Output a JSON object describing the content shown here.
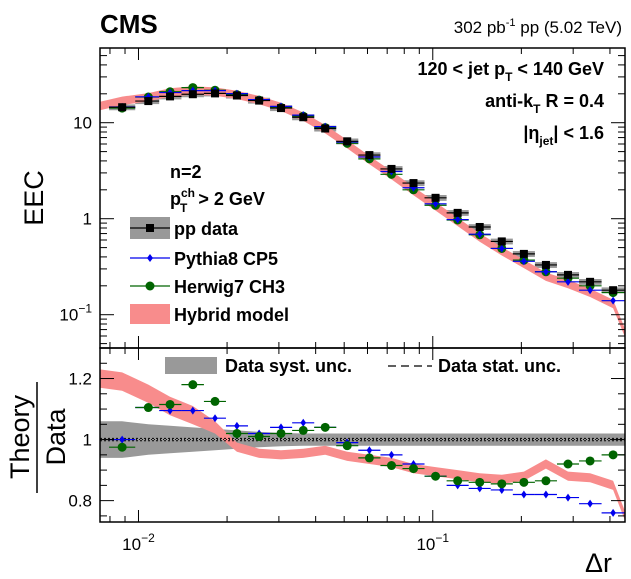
{
  "header": {
    "experiment": "CMS",
    "lumi_value": "302 pb",
    "lumi_exponent": "-1",
    "lumi_rest": " pp (5.02 TeV)"
  },
  "info": {
    "pt_range_left": "120 < jet p",
    "pt_sub": "T",
    "pt_range_right": " < 140 GeV",
    "algo_left": "anti-k",
    "algo_sub": "T",
    "algo_right": " R = 0.4",
    "eta_left": "|η",
    "eta_sub": "jet",
    "eta_right": "| < 1.6",
    "n_label": "n=2",
    "ptch_left": "p",
    "ptch_sup": "ch",
    "ptch_sub": "T",
    "ptch_right": " > 2 GeV"
  },
  "chart_data": [
    {
      "type": "scatter",
      "panel": "main",
      "ylabel": "EEC",
      "xlog": true,
      "ylog": true,
      "xlim": [
        0.0074,
        0.45
      ],
      "ylim": [
        0.045,
        60
      ],
      "x_ticks": [
        0.01,
        0.1
      ],
      "x_tick_labels": [
        "",
        ""
      ],
      "y_ticks": [
        0.1,
        1,
        10
      ],
      "y_tick_labels": [
        "10⁻¹",
        "1",
        "10"
      ],
      "x": [
        0.0088,
        0.0108,
        0.0128,
        0.0153,
        0.0182,
        0.0216,
        0.0257,
        0.0305,
        0.0363,
        0.0431,
        0.0512,
        0.0609,
        0.0724,
        0.086,
        0.1022,
        0.1215,
        0.1444,
        0.1716,
        0.204,
        0.2424,
        0.2881,
        0.3424,
        0.41
      ],
      "series": [
        {
          "name": "pp data",
          "color": "#000000",
          "marker": "square",
          "values": [
            14.5,
            16.8,
            18.8,
            19.8,
            20.2,
            19.2,
            17.0,
            14.2,
            11.4,
            8.7,
            6.4,
            4.6,
            3.3,
            2.35,
            1.65,
            1.15,
            0.82,
            0.58,
            0.43,
            0.33,
            0.26,
            0.22,
            0.18
          ]
        },
        {
          "name": "Pythia8 CP5",
          "color": "#0000ee",
          "marker": "diamond",
          "values": [
            14.6,
            18.6,
            20.6,
            21.6,
            21.6,
            20.1,
            17.4,
            14.8,
            12.0,
            9.1,
            6.3,
            4.4,
            3.1,
            2.1,
            1.43,
            0.98,
            0.69,
            0.49,
            0.36,
            0.28,
            0.22,
            0.18,
            0.14
          ]
        },
        {
          "name": "Herwig7 CH3",
          "color": "#006400",
          "marker": "circle",
          "values": [
            14.2,
            18.5,
            21.0,
            23.2,
            21.8,
            19.6,
            17.2,
            14.4,
            11.7,
            8.9,
            6.1,
            4.2,
            2.9,
            2.0,
            1.38,
            0.97,
            0.68,
            0.49,
            0.37,
            0.28,
            0.24,
            0.2,
            0.17
          ]
        }
      ],
      "hybrid_model": {
        "name": "Hybrid model",
        "color": "#f88c8c",
        "x": [
          0.0074,
          0.0088,
          0.0108,
          0.0128,
          0.0153,
          0.0182,
          0.0216,
          0.0257,
          0.0305,
          0.0363,
          0.0431,
          0.0512,
          0.0609,
          0.0724,
          0.086,
          0.1022,
          0.1215,
          0.1444,
          0.1716,
          0.204,
          0.2424,
          0.2881,
          0.3424,
          0.41,
          0.45
        ],
        "values": [
          15.0,
          17.0,
          18.5,
          20.8,
          21.8,
          21.2,
          19.6,
          17.3,
          14.7,
          11.6,
          8.6,
          6.0,
          4.1,
          2.85,
          1.95,
          1.35,
          0.93,
          0.64,
          0.46,
          0.34,
          0.25,
          0.21,
          0.17,
          0.13,
          0.065
        ]
      },
      "data_syst_rel": 0.07
    },
    {
      "type": "scatter",
      "panel": "ratio",
      "xlabel": "Δr",
      "ylabel_top": "Theory",
      "ylabel_bottom": "Data",
      "xlog": true,
      "xlim": [
        0.0074,
        0.45
      ],
      "ylim": [
        0.73,
        1.3
      ],
      "x_ticks": [
        0.01,
        0.1
      ],
      "x_tick_labels": [
        "10⁻²",
        "10⁻¹"
      ],
      "y_ticks": [
        0.8,
        1.0,
        1.2
      ],
      "y_tick_labels": [
        "0.8",
        "1",
        "1.2"
      ],
      "x": [
        0.0088,
        0.0108,
        0.0128,
        0.0153,
        0.0182,
        0.0216,
        0.0257,
        0.0305,
        0.0363,
        0.0431,
        0.0512,
        0.0609,
        0.0724,
        0.086,
        0.1022,
        0.1215,
        0.1444,
        0.1716,
        0.204,
        0.2424,
        0.2881,
        0.3424,
        0.41
      ],
      "series": [
        {
          "name": "Pythia8 CP5",
          "color": "#0000ee",
          "values": [
            1.0,
            1.105,
            1.095,
            1.095,
            1.07,
            1.045,
            1.02,
            1.04,
            1.055,
            1.04,
            0.99,
            0.965,
            0.95,
            0.92,
            0.88,
            0.85,
            0.84,
            0.835,
            0.82,
            0.82,
            0.81,
            0.79,
            0.76
          ]
        },
        {
          "name": "Herwig7 CH3",
          "color": "#006400",
          "values": [
            0.975,
            1.105,
            1.115,
            1.18,
            1.125,
            1.02,
            1.01,
            1.02,
            1.03,
            1.04,
            0.98,
            0.94,
            0.915,
            0.905,
            0.88,
            0.865,
            0.86,
            0.855,
            0.86,
            0.865,
            0.92,
            0.93,
            0.95
          ]
        }
      ],
      "hybrid_model": {
        "name": "Hybrid model",
        "color": "#f88c8c",
        "x": [
          0.0074,
          0.0088,
          0.0108,
          0.0128,
          0.0153,
          0.0182,
          0.0216,
          0.0257,
          0.0305,
          0.0363,
          0.0431,
          0.0512,
          0.0609,
          0.0724,
          0.086,
          0.1022,
          0.1215,
          0.1444,
          0.1716,
          0.204,
          0.2424,
          0.2881,
          0.3424,
          0.41,
          0.45
        ],
        "center": [
          1.2,
          1.19,
          1.15,
          1.11,
          1.08,
          1.04,
          0.975,
          0.955,
          0.95,
          0.955,
          0.965,
          0.945,
          0.935,
          0.925,
          0.905,
          0.895,
          0.885,
          0.875,
          0.87,
          0.88,
          0.92,
          0.88,
          0.875,
          0.85,
          0.75
        ],
        "half_width": [
          0.03,
          0.03,
          0.03,
          0.03,
          0.03,
          0.02,
          0.015,
          0.015,
          0.015,
          0.015,
          0.015,
          0.015,
          0.015,
          0.015,
          0.015,
          0.015,
          0.015,
          0.015,
          0.015,
          0.015,
          0.015,
          0.015,
          0.015,
          0.015,
          0.015
        ]
      },
      "data_syst": {
        "x": [
          0.0074,
          0.0088,
          0.0108,
          0.0128,
          0.0153,
          0.0182,
          0.0216,
          0.0257,
          0.0305,
          0.0363,
          0.0431,
          0.0512,
          0.0609,
          0.0724,
          0.086,
          0.1022,
          0.1215,
          0.1444,
          0.1716,
          0.204,
          0.2424,
          0.2881,
          0.3424,
          0.41,
          0.45
        ],
        "half_width": [
          0.06,
          0.06,
          0.05,
          0.045,
          0.04,
          0.035,
          0.03,
          0.025,
          0.022,
          0.02,
          0.02,
          0.02,
          0.02,
          0.02,
          0.02,
          0.02,
          0.02,
          0.02,
          0.02,
          0.02,
          0.02,
          0.02,
          0.02,
          0.02,
          0.02
        ]
      },
      "stat_unc_rel": 0.004
    }
  ],
  "legend_main": [
    {
      "label": "pp data"
    },
    {
      "label": "Pythia8 CP5"
    },
    {
      "label": "Herwig7 CH3"
    },
    {
      "label": "Hybrid model"
    }
  ],
  "legend_ratio": [
    {
      "label": "Data syst. unc."
    },
    {
      "label": "Data stat. unc."
    }
  ],
  "colors": {
    "data": "#000000",
    "pythia": "#0000ee",
    "herwig": "#006400",
    "hybrid": "#f88c8c",
    "syst": "#999999"
  }
}
